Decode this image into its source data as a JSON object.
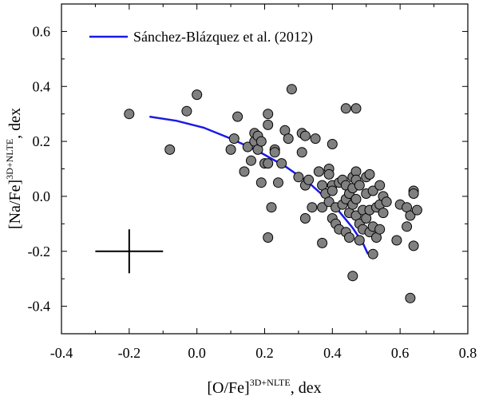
{
  "chart_data": {
    "type": "scatter",
    "xlabel": "[O/Fe]",
    "xlabel_sup": "3D+NLTE",
    "xlabel_suffix": ", dex",
    "ylabel": "[Na/Fe]",
    "ylabel_sup": "3D+NLTE",
    "ylabel_suffix": ", dex",
    "xlim": [
      -0.4,
      0.8
    ],
    "ylim": [
      -0.5,
      0.7
    ],
    "xticks": [
      -0.4,
      -0.2,
      0.0,
      0.2,
      0.4,
      0.6,
      0.8
    ],
    "xtick_labels": [
      "-0.4",
      "-0.2",
      "0.0",
      "0.2",
      "0.4",
      "0.6",
      "0.8"
    ],
    "yticks": [
      -0.4,
      -0.2,
      0.0,
      0.2,
      0.4,
      0.6
    ],
    "ytick_labels": [
      "-0.4",
      "-0.2",
      "0.0",
      "0.2",
      "0.4",
      "0.6"
    ],
    "legend": {
      "label": "Sánchez-Blázquez et al. (2012)",
      "placement": "top-left",
      "color": "#1a1ae6"
    },
    "marker_fill": "#808080",
    "marker_edge": "#000000",
    "points": [
      [
        -0.2,
        0.3
      ],
      [
        -0.08,
        0.17
      ],
      [
        -0.03,
        0.31
      ],
      [
        0.0,
        0.37
      ],
      [
        0.1,
        0.17
      ],
      [
        0.11,
        0.21
      ],
      [
        0.12,
        0.29
      ],
      [
        0.14,
        0.09
      ],
      [
        0.15,
        0.18
      ],
      [
        0.16,
        0.13
      ],
      [
        0.17,
        0.23
      ],
      [
        0.17,
        0.2
      ],
      [
        0.18,
        0.17
      ],
      [
        0.18,
        0.22
      ],
      [
        0.19,
        0.2
      ],
      [
        0.19,
        0.05
      ],
      [
        0.2,
        0.12
      ],
      [
        0.21,
        0.3
      ],
      [
        0.21,
        0.26
      ],
      [
        0.21,
        0.12
      ],
      [
        0.21,
        -0.15
      ],
      [
        0.22,
        -0.04
      ],
      [
        0.23,
        0.17
      ],
      [
        0.23,
        0.16
      ],
      [
        0.24,
        0.05
      ],
      [
        0.25,
        0.12
      ],
      [
        0.26,
        0.24
      ],
      [
        0.27,
        0.21
      ],
      [
        0.28,
        0.39
      ],
      [
        0.3,
        0.07
      ],
      [
        0.31,
        0.23
      ],
      [
        0.31,
        0.16
      ],
      [
        0.32,
        0.22
      ],
      [
        0.32,
        0.04
      ],
      [
        0.32,
        -0.08
      ],
      [
        0.33,
        0.06
      ],
      [
        0.34,
        -0.04
      ],
      [
        0.35,
        0.21
      ],
      [
        0.36,
        0.09
      ],
      [
        0.37,
        0.04
      ],
      [
        0.37,
        -0.04
      ],
      [
        0.37,
        -0.17
      ],
      [
        0.38,
        0.01
      ],
      [
        0.39,
        0.1
      ],
      [
        0.39,
        0.08
      ],
      [
        0.39,
        -0.02
      ],
      [
        0.4,
        0.19
      ],
      [
        0.4,
        0.04
      ],
      [
        0.4,
        0.02
      ],
      [
        0.4,
        -0.08
      ],
      [
        0.41,
        -0.04
      ],
      [
        0.41,
        -0.1
      ],
      [
        0.42,
        0.05
      ],
      [
        0.42,
        -0.12
      ],
      [
        0.43,
        0.06
      ],
      [
        0.43,
        -0.03
      ],
      [
        0.44,
        0.32
      ],
      [
        0.44,
        0.04
      ],
      [
        0.44,
        -0.01
      ],
      [
        0.44,
        -0.13
      ],
      [
        0.45,
        0.01
      ],
      [
        0.45,
        -0.06
      ],
      [
        0.45,
        -0.15
      ],
      [
        0.46,
        0.07
      ],
      [
        0.46,
        0.03
      ],
      [
        0.46,
        -0.03
      ],
      [
        0.46,
        -0.29
      ],
      [
        0.47,
        0.32
      ],
      [
        0.47,
        0.09
      ],
      [
        0.47,
        0.06
      ],
      [
        0.47,
        -0.01
      ],
      [
        0.47,
        -0.07
      ],
      [
        0.48,
        0.04
      ],
      [
        0.48,
        -0.1
      ],
      [
        0.48,
        -0.16
      ],
      [
        0.49,
        -0.05
      ],
      [
        0.49,
        -0.12
      ],
      [
        0.5,
        0.07
      ],
      [
        0.5,
        0.01
      ],
      [
        0.5,
        -0.08
      ],
      [
        0.51,
        0.08
      ],
      [
        0.51,
        -0.05
      ],
      [
        0.51,
        -0.13
      ],
      [
        0.52,
        0.02
      ],
      [
        0.52,
        -0.11
      ],
      [
        0.52,
        -0.21
      ],
      [
        0.53,
        -0.04
      ],
      [
        0.53,
        -0.15
      ],
      [
        0.54,
        0.04
      ],
      [
        0.54,
        -0.03
      ],
      [
        0.54,
        -0.12
      ],
      [
        0.55,
        0.0
      ],
      [
        0.55,
        -0.06
      ],
      [
        0.56,
        -0.02
      ],
      [
        0.59,
        -0.16
      ],
      [
        0.6,
        -0.03
      ],
      [
        0.62,
        -0.11
      ],
      [
        0.62,
        -0.04
      ],
      [
        0.63,
        -0.07
      ],
      [
        0.63,
        -0.37
      ],
      [
        0.64,
        0.02
      ],
      [
        0.64,
        0.01
      ],
      [
        0.64,
        -0.18
      ],
      [
        0.65,
        -0.05
      ]
    ],
    "fit_curve": [
      [
        -0.14,
        0.29
      ],
      [
        -0.06,
        0.275
      ],
      [
        0.02,
        0.25
      ],
      [
        0.1,
        0.21
      ],
      [
        0.18,
        0.165
      ],
      [
        0.26,
        0.11
      ],
      [
        0.33,
        0.05
      ],
      [
        0.38,
        -0.005
      ],
      [
        0.42,
        -0.055
      ],
      [
        0.46,
        -0.115
      ],
      [
        0.49,
        -0.17
      ],
      [
        0.505,
        -0.21
      ]
    ],
    "error_bar": {
      "x": -0.2,
      "y": -0.2,
      "x_err": 0.1,
      "y_err": 0.08
    }
  }
}
